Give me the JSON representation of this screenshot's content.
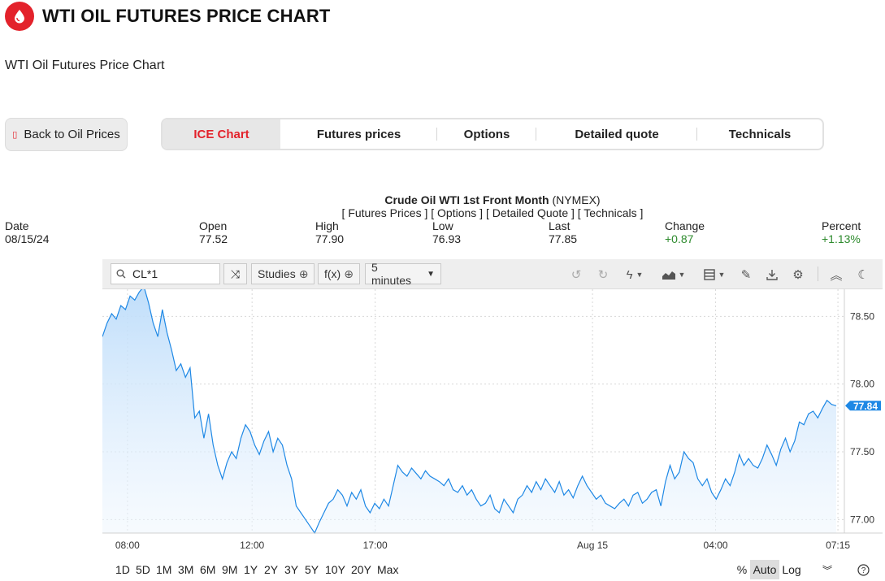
{
  "header": {
    "title": "WTI OIL FUTURES PRICE CHART",
    "subtitle": "WTI Oil Futures Price Chart",
    "logo_icon": "oil-drop-icon",
    "accent": "#e3222b"
  },
  "back_button": {
    "label": "Back to Oil Prices"
  },
  "tabs": [
    {
      "label": "ICE Chart",
      "active": true
    },
    {
      "label": "Futures prices"
    },
    {
      "label": "Options"
    },
    {
      "label": "Detailed quote"
    },
    {
      "label": "Technicals"
    }
  ],
  "quote": {
    "name": "Crude Oil WTI 1st Front Month",
    "exchange": "(NYMEX)",
    "links": "[ Futures Prices ] [ Options ] [ Detailed Quote ] [ Technicals ]",
    "stats": [
      {
        "label": "Date",
        "value": "08/15/24"
      },
      {
        "label": "Open",
        "value": "77.52"
      },
      {
        "label": "High",
        "value": "77.90"
      },
      {
        "label": "Low",
        "value": "76.93"
      },
      {
        "label": "Last",
        "value": "77.85"
      },
      {
        "label": "Change",
        "value": "+0.87",
        "color": "#2e8b2e"
      },
      {
        "label": "Percent",
        "value": "+1.13%",
        "color": "#2e8b2e"
      }
    ]
  },
  "toolbar": {
    "symbol": "CL*1",
    "studies_label": "Studies",
    "fx_label": "f(x)",
    "interval_label": "5 minutes",
    "icons": [
      "undo-icon",
      "redo-icon",
      "lightning-icon",
      "chart-type-icon",
      "layout-icon",
      "pencil-icon",
      "download-icon",
      "gear-icon",
      "collapse-icon",
      "moon-icon"
    ]
  },
  "chart_data": {
    "type": "area",
    "x_tick_labels": [
      "08:00",
      "12:00",
      "17:00",
      "Aug 15",
      "04:00",
      "07:15"
    ],
    "y_tick_labels": [
      "78.50",
      "78.00",
      "77.50",
      "77.00"
    ],
    "ylim": [
      76.9,
      78.7
    ],
    "last_price_label": "77.84",
    "series_color": "#1e88e5",
    "values": [
      78.35,
      78.45,
      78.52,
      78.48,
      78.58,
      78.55,
      78.65,
      78.62,
      78.68,
      78.72,
      78.6,
      78.45,
      78.35,
      78.55,
      78.38,
      78.25,
      78.1,
      78.15,
      78.05,
      78.12,
      77.75,
      77.8,
      77.6,
      77.78,
      77.55,
      77.4,
      77.3,
      77.42,
      77.5,
      77.45,
      77.6,
      77.7,
      77.65,
      77.55,
      77.48,
      77.58,
      77.65,
      77.5,
      77.6,
      77.55,
      77.4,
      77.3,
      77.1,
      77.05,
      77.0,
      76.95,
      76.9,
      76.98,
      77.05,
      77.12,
      77.15,
      77.22,
      77.18,
      77.1,
      77.2,
      77.15,
      77.22,
      77.1,
      77.05,
      77.12,
      77.08,
      77.15,
      77.1,
      77.25,
      77.4,
      77.35,
      77.32,
      77.38,
      77.34,
      77.3,
      77.36,
      77.32,
      77.3,
      77.28,
      77.25,
      77.3,
      77.22,
      77.2,
      77.25,
      77.18,
      77.22,
      77.15,
      77.1,
      77.12,
      77.18,
      77.08,
      77.05,
      77.15,
      77.1,
      77.05,
      77.15,
      77.18,
      77.25,
      77.2,
      77.28,
      77.22,
      77.3,
      77.25,
      77.2,
      77.28,
      77.18,
      77.22,
      77.16,
      77.25,
      77.32,
      77.25,
      77.2,
      77.15,
      77.18,
      77.12,
      77.1,
      77.08,
      77.12,
      77.15,
      77.1,
      77.18,
      77.2,
      77.12,
      77.15,
      77.2,
      77.22,
      77.1,
      77.28,
      77.4,
      77.3,
      77.35,
      77.5,
      77.45,
      77.42,
      77.3,
      77.25,
      77.3,
      77.2,
      77.15,
      77.22,
      77.3,
      77.25,
      77.35,
      77.48,
      77.4,
      77.45,
      77.4,
      77.38,
      77.45,
      77.55,
      77.48,
      77.4,
      77.52,
      77.6,
      77.5,
      77.58,
      77.72,
      77.7,
      77.78,
      77.8,
      77.75,
      77.82,
      77.88,
      77.85,
      77.84
    ]
  },
  "ranges": [
    "1D",
    "5D",
    "1M",
    "3M",
    "6M",
    "9M",
    "1Y",
    "2Y",
    "3Y",
    "5Y",
    "10Y",
    "20Y",
    "Max"
  ],
  "scales": [
    {
      "label": "%",
      "active": false
    },
    {
      "label": "Auto",
      "active": true
    },
    {
      "label": "Log",
      "active": false
    }
  ]
}
